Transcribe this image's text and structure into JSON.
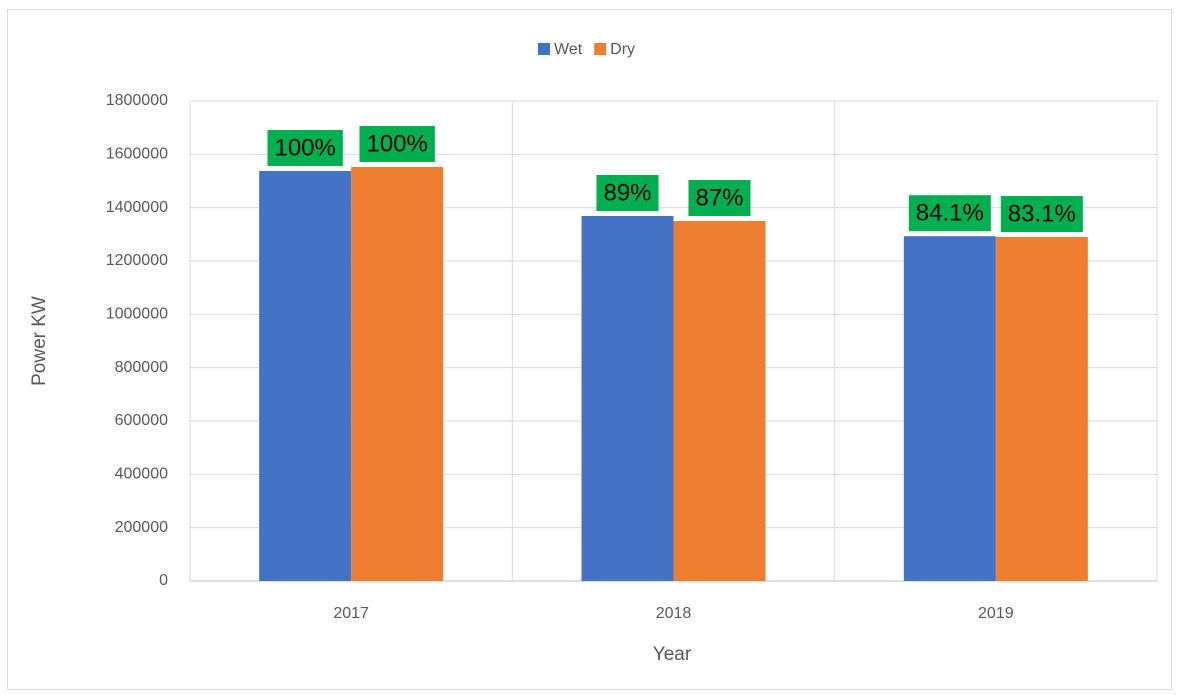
{
  "chart_data": {
    "type": "bar",
    "categories": [
      "2017",
      "2018",
      "2019"
    ],
    "series": [
      {
        "name": "Wet",
        "color": "#4472c4",
        "values": [
          1537500,
          1368750,
          1293000
        ],
        "data_labels": [
          "100%",
          "89%",
          "84.1%"
        ]
      },
      {
        "name": "Dry",
        "color": "#ed7d31",
        "values": [
          1552500,
          1350000,
          1290000
        ],
        "data_labels": [
          "100%",
          "87%",
          "83.1%"
        ]
      }
    ],
    "label_color": "#00b050",
    "x_label": "Year",
    "y_label": "Power KW",
    "ylim": [
      0,
      1800000
    ],
    "yticks": [
      0,
      200000,
      400000,
      600000,
      800000,
      1000000,
      1200000,
      1400000,
      1600000,
      1800000
    ],
    "grid": true,
    "legend": "top"
  }
}
